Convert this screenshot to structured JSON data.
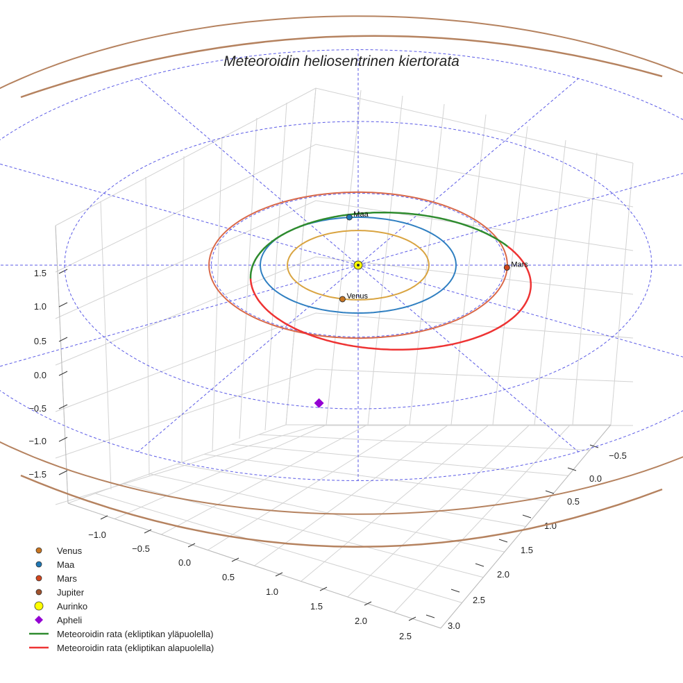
{
  "chart_data": {
    "type": "line",
    "title": "Meteoroidin heliosentrinen kiertorata",
    "x_ticks": [
      "−1.0",
      "−0.5",
      "0.0",
      "0.5",
      "1.0",
      "1.5",
      "2.0",
      "2.5"
    ],
    "y_ticks": [
      "−0.5",
      "0.0",
      "0.5",
      "1.0",
      "1.5",
      "2.0",
      "2.5",
      "3.0"
    ],
    "z_ticks": [
      "1.5",
      "1.0",
      "0.5",
      "0.0",
      "−0.5",
      "−1.0",
      "−1.5"
    ],
    "xlim": [
      -1.25,
      2.6
    ],
    "ylim": [
      -0.8,
      3.1
    ],
    "zlim": [
      -1.6,
      1.6
    ],
    "grid": true,
    "legend_position": "bottom-left",
    "planet_orbits": [
      {
        "name": "Venus",
        "a": 0.723,
        "color": "#d9a441"
      },
      {
        "name": "Maa",
        "a": 1.0,
        "color": "#2f7fc1"
      },
      {
        "name": "Mars",
        "a": 1.524,
        "color": "#d9694a"
      },
      {
        "name": "Jupiter",
        "a": 5.2,
        "color": "#b5825f"
      }
    ],
    "planets": [
      {
        "name": "Venus",
        "x": -0.16,
        "y": 0.71,
        "color": "#c87520"
      },
      {
        "name": "Maa",
        "x": -0.09,
        "y": -1.0,
        "color": "#1f77b4"
      },
      {
        "name": "Mars",
        "x": 1.52,
        "y": 0.05,
        "color": "#d2461e"
      }
    ],
    "sun": {
      "name": "Aurinko",
      "x": 0,
      "y": 0,
      "color": "#ffff00"
    },
    "reference_circles_au": [
      1,
      2,
      3
    ],
    "meteoroid_orbit": {
      "a": 1.47,
      "e": 0.32,
      "perihelion_angle_deg": 225,
      "segments": [
        {
          "name": "Meteoroidin rata (ekliptikan yläpuolella)",
          "color": "#2e8b2e"
        },
        {
          "name": "Meteoroidin rata (ekliptikan alapuolella)",
          "color": "#ee3333"
        }
      ]
    },
    "aphelion": {
      "name": "Apheli",
      "x": 1.38,
      "y": 1.38,
      "color": "#9400d3"
    },
    "legend": [
      {
        "label": "Venus",
        "kind": "dot",
        "color": "#c87520"
      },
      {
        "label": "Maa",
        "kind": "dot",
        "color": "#1f77b4"
      },
      {
        "label": "Mars",
        "kind": "dot",
        "color": "#d2461e"
      },
      {
        "label": "Jupiter",
        "kind": "dot",
        "color": "#a0522d"
      },
      {
        "label": "Aurinko",
        "kind": "sun",
        "color": "#ffff00"
      },
      {
        "label": "Apheli",
        "kind": "diamond",
        "color": "#9400d3"
      },
      {
        "label": "Meteoroidin rata (ekliptikan yläpuolella)",
        "kind": "line",
        "color": "#2e8b2e"
      },
      {
        "label": "Meteoroidin rata (ekliptikan alapuolella)",
        "kind": "line",
        "color": "#ee3333"
      }
    ]
  }
}
